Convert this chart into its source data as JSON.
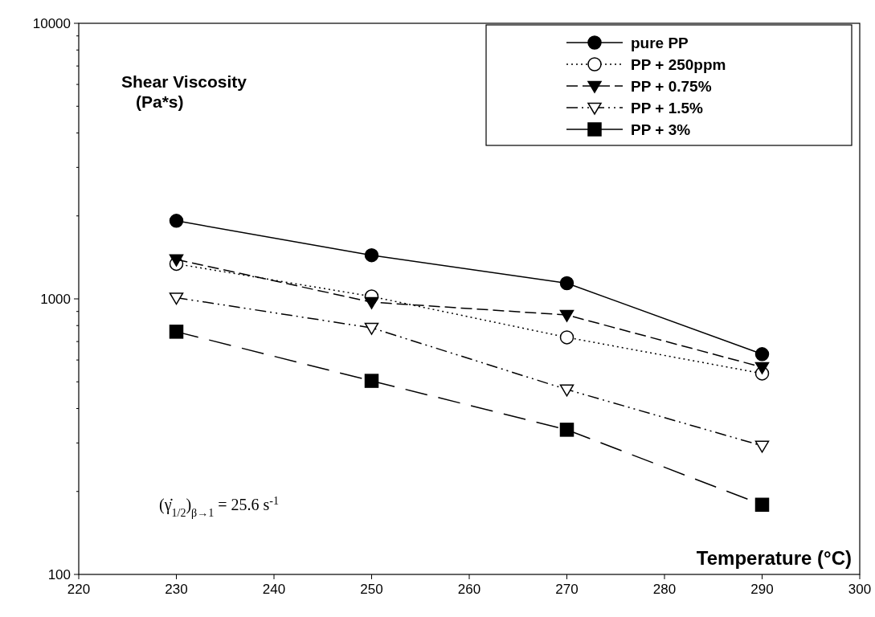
{
  "chart_data": {
    "type": "line",
    "ylabel": "Shear Viscosity (Pa*s)",
    "xlabel": "Temperature (°C)",
    "x": [
      230,
      250,
      270,
      290
    ],
    "xlim": [
      220,
      300
    ],
    "xticks": [
      220,
      230,
      240,
      250,
      260,
      270,
      280,
      290,
      300
    ],
    "ylim": [
      100,
      10000
    ],
    "yticks": [
      100,
      1000,
      10000
    ],
    "log": "y",
    "grid": false,
    "legend": "top right",
    "annotations": [
      "(γ̇$_{1/2}$)$_{β→1}$ = 25.6 s$^{-1}$"
    ],
    "series": [
      {
        "name": "pure PP",
        "color": "#000000",
        "marker": "circle",
        "line_style": "solid",
        "values": [
          1920,
          1440,
          1140,
          630
        ]
      },
      {
        "name": "PP + 250ppm",
        "color": "#000000",
        "marker": "circle-open",
        "line_style": "dotted",
        "values": [
          1340,
          1020,
          725,
          536
        ]
      },
      {
        "name": "PP + 0.75%",
        "color": "#000000",
        "marker": "triangle-down",
        "line_style": "dashed",
        "values": [
          1390,
          973,
          874,
          565
        ]
      },
      {
        "name": "PP + 1.5%",
        "color": "#000000",
        "marker": "triangle-down-open",
        "line_style": "dashdotdot",
        "values": [
          1010,
          785,
          469,
          293
        ]
      },
      {
        "name": "PP + 3%",
        "color": "#000000",
        "marker": "square",
        "line_style": "longdash",
        "values": [
          760,
          504,
          335,
          179
        ]
      }
    ]
  }
}
